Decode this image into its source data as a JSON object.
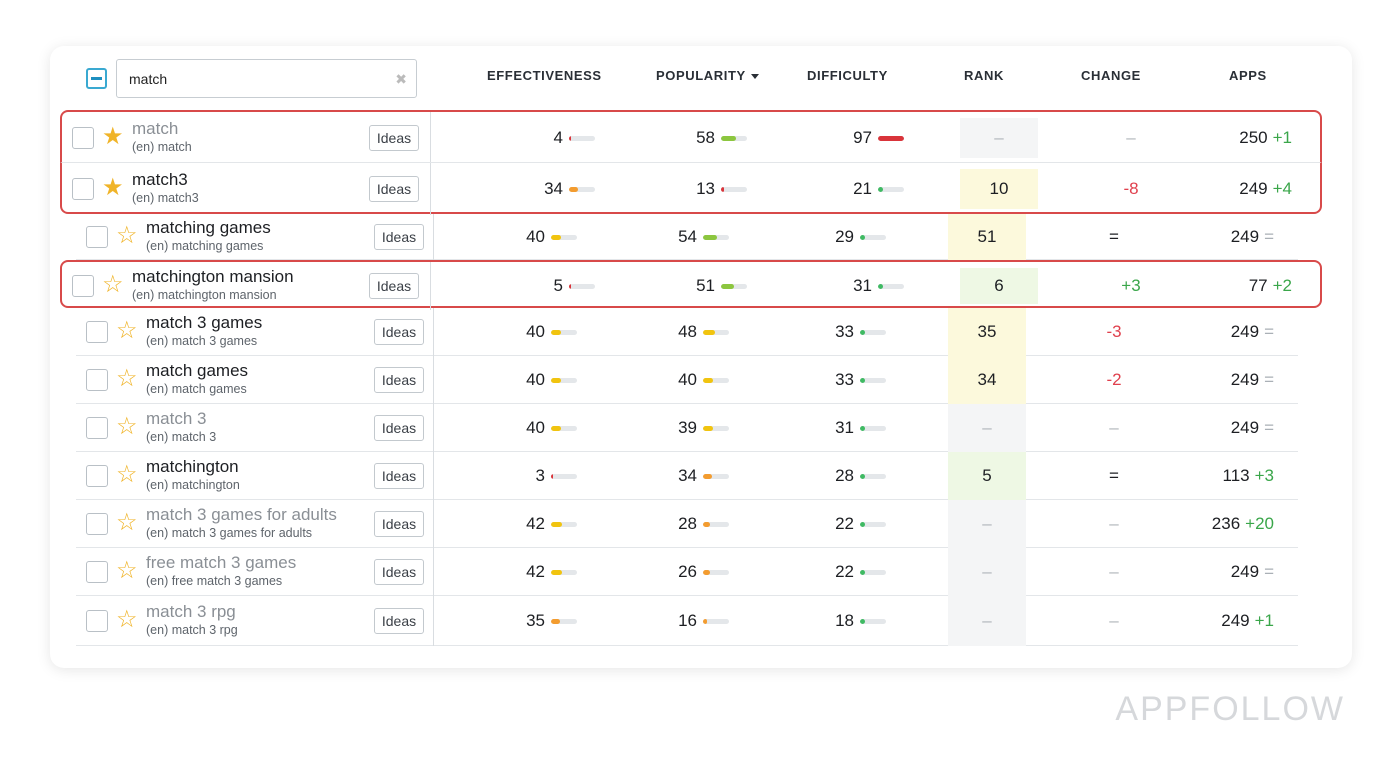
{
  "search": {
    "value": "match",
    "clear_icon": "close-icon"
  },
  "columns": [
    "EFFECTIVENESS",
    "POPULARITY",
    "DIFFICULTY",
    "RANK",
    "CHANGE",
    "APPS"
  ],
  "sorted_column": "POPULARITY",
  "ideas_label": "Ideas",
  "colors": {
    "highlight_border": "#d84a4a",
    "star": "#f0b429",
    "positive": "#3aa64a",
    "negative": "#e0404d",
    "bar_green": "#8cc63f",
    "bar_yellow": "#f1c40f",
    "bar_orange": "#f39c2f",
    "bar_red": "#d9343a",
    "dot_green": "#3fba63",
    "rank_yellow": "#fcf9dc",
    "rank_green": "#eef8e4",
    "rank_grey": "#f4f5f6"
  },
  "rows": [
    {
      "keyword": "match",
      "sub": "(en) match",
      "starred": true,
      "muted": true,
      "highlight": "top",
      "eff": {
        "v": 4,
        "c": "bar_red",
        "f": 0.05
      },
      "pop": {
        "v": 58,
        "c": "bar_green",
        "f": 0.58
      },
      "diff": {
        "v": 97,
        "c": "bar_red",
        "f": 1.0
      },
      "rank": "–",
      "rank_bg": "rank_grey",
      "change": "–",
      "change_type": "dash",
      "apps": "250",
      "apps_delta": "+1",
      "apps_type": "pos"
    },
    {
      "keyword": "match3",
      "sub": "(en) match3",
      "starred": true,
      "muted": false,
      "highlight": "bottom",
      "eff": {
        "v": 34,
        "c": "bar_orange",
        "f": 0.34
      },
      "pop": {
        "v": 13,
        "c": "bar_red",
        "f": 0.13
      },
      "diff": {
        "v": 21,
        "c": "dot_green",
        "f": 0.21
      },
      "rank": "10",
      "rank_bg": "rank_yellow",
      "change": "-8",
      "change_type": "neg",
      "apps": "249",
      "apps_delta": "+4",
      "apps_type": "pos"
    },
    {
      "keyword": "matching games",
      "sub": "(en) matching games",
      "starred": false,
      "muted": false,
      "highlight": "none",
      "eff": {
        "v": 40,
        "c": "bar_yellow",
        "f": 0.4
      },
      "pop": {
        "v": 54,
        "c": "bar_green",
        "f": 0.54
      },
      "diff": {
        "v": 29,
        "c": "dot_green",
        "f": 0.29
      },
      "rank": "51",
      "rank_bg": "rank_yellow",
      "change": "=",
      "change_type": "eq",
      "apps": "249",
      "apps_delta": "=",
      "apps_type": "eqm"
    },
    {
      "keyword": "matchington mansion",
      "sub": "(en) matchington mansion",
      "starred": false,
      "muted": false,
      "highlight": "single",
      "eff": {
        "v": 5,
        "c": "bar_red",
        "f": 0.05
      },
      "pop": {
        "v": 51,
        "c": "bar_green",
        "f": 0.51
      },
      "diff": {
        "v": 31,
        "c": "dot_green",
        "f": 0.31
      },
      "rank": "6",
      "rank_bg": "rank_green",
      "change": "+3",
      "change_type": "pos",
      "apps": "77",
      "apps_delta": "+2",
      "apps_type": "pos"
    },
    {
      "keyword": "match 3 games",
      "sub": "(en) match 3 games",
      "starred": false,
      "muted": false,
      "highlight": "none",
      "eff": {
        "v": 40,
        "c": "bar_yellow",
        "f": 0.4
      },
      "pop": {
        "v": 48,
        "c": "bar_yellow",
        "f": 0.48
      },
      "diff": {
        "v": 33,
        "c": "dot_green",
        "f": 0.33
      },
      "rank": "35",
      "rank_bg": "rank_yellow",
      "change": "-3",
      "change_type": "neg",
      "apps": "249",
      "apps_delta": "=",
      "apps_type": "eqm"
    },
    {
      "keyword": "match games",
      "sub": "(en) match games",
      "starred": false,
      "muted": false,
      "highlight": "none",
      "eff": {
        "v": 40,
        "c": "bar_yellow",
        "f": 0.4
      },
      "pop": {
        "v": 40,
        "c": "bar_yellow",
        "f": 0.4
      },
      "diff": {
        "v": 33,
        "c": "dot_green",
        "f": 0.33
      },
      "rank": "34",
      "rank_bg": "rank_yellow",
      "change": "-2",
      "change_type": "neg",
      "apps": "249",
      "apps_delta": "=",
      "apps_type": "eqm"
    },
    {
      "keyword": "match 3",
      "sub": "(en) match 3",
      "starred": false,
      "muted": true,
      "highlight": "none",
      "eff": {
        "v": 40,
        "c": "bar_yellow",
        "f": 0.4
      },
      "pop": {
        "v": 39,
        "c": "bar_yellow",
        "f": 0.39
      },
      "diff": {
        "v": 31,
        "c": "dot_green",
        "f": 0.31
      },
      "rank": "–",
      "rank_bg": "rank_grey",
      "change": "–",
      "change_type": "dash",
      "apps": "249",
      "apps_delta": "=",
      "apps_type": "eqm"
    },
    {
      "keyword": "matchington",
      "sub": "(en) matchington",
      "starred": false,
      "muted": false,
      "highlight": "none",
      "eff": {
        "v": 3,
        "c": "bar_red",
        "f": 0.03
      },
      "pop": {
        "v": 34,
        "c": "bar_orange",
        "f": 0.34
      },
      "diff": {
        "v": 28,
        "c": "dot_green",
        "f": 0.28
      },
      "rank": "5",
      "rank_bg": "rank_green",
      "change": "=",
      "change_type": "eq",
      "apps": "113",
      "apps_delta": "+3",
      "apps_type": "pos"
    },
    {
      "keyword": "match 3 games for adults",
      "sub": "(en) match 3 games for adults",
      "starred": false,
      "muted": true,
      "highlight": "none",
      "eff": {
        "v": 42,
        "c": "bar_yellow",
        "f": 0.42
      },
      "pop": {
        "v": 28,
        "c": "bar_orange",
        "f": 0.28
      },
      "diff": {
        "v": 22,
        "c": "dot_green",
        "f": 0.22
      },
      "rank": "–",
      "rank_bg": "rank_grey",
      "change": "–",
      "change_type": "dash",
      "apps": "236",
      "apps_delta": "+20",
      "apps_type": "pos"
    },
    {
      "keyword": "free match 3 games",
      "sub": "(en) free match 3 games",
      "starred": false,
      "muted": true,
      "highlight": "none",
      "eff": {
        "v": 42,
        "c": "bar_yellow",
        "f": 0.42
      },
      "pop": {
        "v": 26,
        "c": "bar_orange",
        "f": 0.26
      },
      "diff": {
        "v": 22,
        "c": "dot_green",
        "f": 0.22
      },
      "rank": "–",
      "rank_bg": "rank_grey",
      "change": "–",
      "change_type": "dash",
      "apps": "249",
      "apps_delta": "=",
      "apps_type": "eqm"
    },
    {
      "keyword": "match 3 rpg",
      "sub": "(en) match 3 rpg",
      "starred": false,
      "muted": true,
      "highlight": "none",
      "eff": {
        "v": 35,
        "c": "bar_orange",
        "f": 0.35
      },
      "pop": {
        "v": 16,
        "c": "bar_orange",
        "f": 0.16
      },
      "diff": {
        "v": 18,
        "c": "dot_green",
        "f": 0.18
      },
      "rank": "–",
      "rank_bg": "rank_grey",
      "change": "–",
      "change_type": "dash",
      "apps": "249",
      "apps_delta": "+1",
      "apps_type": "pos"
    }
  ],
  "brand": "APPFOLLOW"
}
